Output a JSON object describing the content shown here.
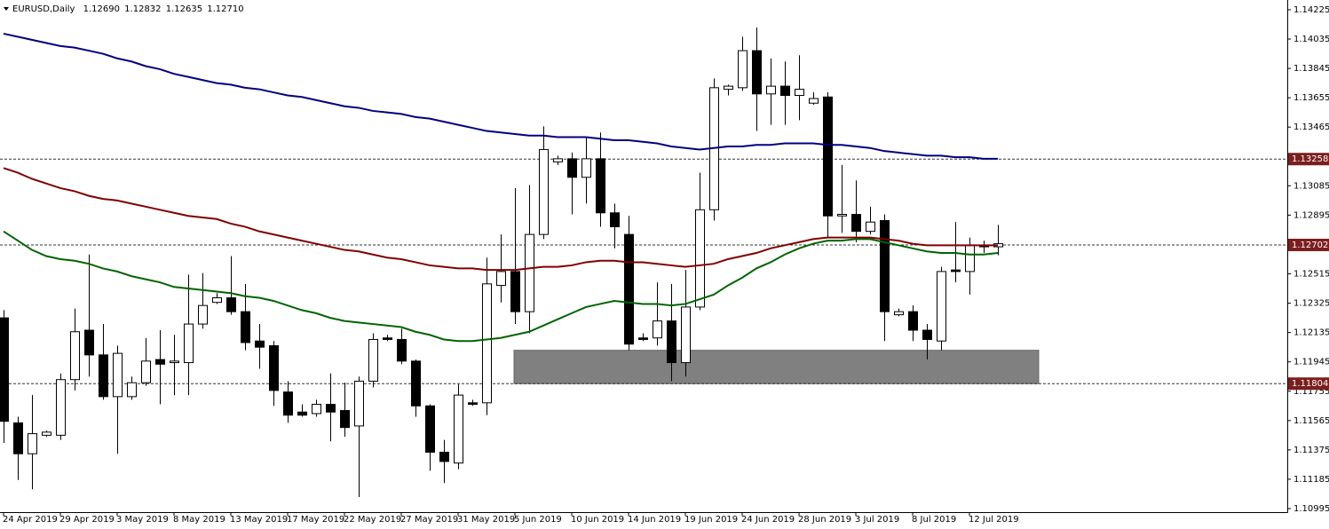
{
  "chart_data": {
    "type": "candlestick",
    "header": {
      "symbol": "EURUSD,Daily",
      "ohlc": [
        "1.12690",
        "1.12832",
        "1.12635",
        "1.12710"
      ]
    },
    "categories": [
      "24 Apr 2019",
      null,
      null,
      null,
      "29 Apr 2019",
      null,
      null,
      null,
      "3 May 2019",
      null,
      null,
      null,
      "8 May 2019",
      null,
      null,
      null,
      "13 May 2019",
      null,
      null,
      null,
      "17 May 2019",
      null,
      null,
      null,
      "22 May 2019",
      null,
      null,
      null,
      "27 May 2019",
      null,
      null,
      null,
      "31 May 2019",
      null,
      null,
      null,
      "5 Jun 2019",
      null,
      null,
      null,
      "10 Jun 2019",
      null,
      null,
      null,
      "14 Jun 2019",
      null,
      null,
      null,
      "19 Jun 2019",
      null,
      null,
      null,
      "24 Jun 2019",
      null,
      null,
      null,
      "28 Jun 2019",
      null,
      null,
      null,
      "3 Jul 2019",
      null,
      null,
      null,
      "8 Jul 2019",
      null,
      null,
      null,
      "12 Jul 2019",
      null,
      null
    ],
    "open": [
      1.1223,
      1.1155,
      1.1135,
      1.1147,
      1.1147,
      1.1183,
      1.1215,
      1.1199,
      1.1172,
      1.1172,
      1.1181,
      1.1196,
      1.1194,
      1.1194,
      1.1219,
      1.1233,
      1.1236,
      1.1227,
      1.1208,
      1.1205,
      1.1175,
      1.1162,
      1.1161,
      1.1167,
      1.1163,
      1.1153,
      1.1182,
      1.121,
      1.1209,
      1.1195,
      1.1166,
      1.1136,
      1.1129,
      1.1168,
      1.1168,
      1.1244,
      1.1253,
      1.1227,
      1.1277,
      1.1324,
      1.1326,
      1.1314,
      1.1326,
      1.1291,
      1.1277,
      1.121,
      1.121,
      1.1221,
      1.1194,
      1.123,
      1.1293,
      1.1371,
      1.1372,
      1.1396,
      1.1368,
      1.1373,
      1.1367,
      1.1362,
      1.1366,
      1.1289,
      1.129,
      1.1279,
      1.1286,
      1.1225,
      1.1227,
      1.1215,
      1.1208,
      1.1254,
      1.1253,
      1.127,
      1.1269
    ],
    "high": [
      1.1228,
      1.1159,
      1.1173,
      1.115,
      1.1187,
      1.1229,
      1.1264,
      1.1219,
      1.1205,
      1.1185,
      1.121,
      1.1215,
      1.1212,
      1.1251,
      1.1252,
      1.1239,
      1.1263,
      1.1245,
      1.1219,
      1.1208,
      1.1182,
      1.1167,
      1.117,
      1.1187,
      1.1181,
      1.1185,
      1.1213,
      1.1212,
      1.1216,
      1.1196,
      1.1167,
      1.1144,
      1.118,
      1.117,
      1.1262,
      1.1277,
      1.1307,
      1.1309,
      1.1347,
      1.1328,
      1.133,
      1.134,
      1.1343,
      1.1297,
      1.1289,
      1.1213,
      1.1246,
      1.1245,
      1.1254,
      1.1317,
      1.1378,
      1.1374,
      1.1405,
      1.1411,
      1.1391,
      1.1389,
      1.1393,
      1.1369,
      1.1369,
      1.1322,
      1.1312,
      1.1295,
      1.129,
      1.1229,
      1.1231,
      1.1219,
      1.1256,
      1.1285,
      1.1275,
      1.1273,
      1.12832
    ],
    "low": [
      1.1142,
      1.1118,
      1.1112,
      1.1146,
      1.1144,
      1.1176,
      1.1185,
      1.117,
      1.1135,
      1.117,
      1.1179,
      1.1167,
      1.1173,
      1.1173,
      1.1216,
      1.1232,
      1.1225,
      1.1202,
      1.119,
      1.1166,
      1.1155,
      1.1159,
      1.1159,
      1.1143,
      1.1146,
      1.1107,
      1.1178,
      1.1208,
      1.1193,
      1.1159,
      1.1124,
      1.1116,
      1.1125,
      1.1166,
      1.116,
      1.1233,
      1.1219,
      1.1213,
      1.1274,
      1.1322,
      1.129,
      1.1297,
      1.1282,
      1.1268,
      1.1202,
      1.1208,
      1.1205,
      1.1182,
      1.1185,
      1.1228,
      1.1286,
      1.1367,
      1.137,
      1.1344,
      1.1348,
      1.1348,
      1.1351,
      1.1361,
      1.1275,
      1.1278,
      1.1272,
      1.1277,
      1.1208,
      1.1224,
      1.1208,
      1.1196,
      1.1202,
      1.1246,
      1.1238,
      1.1265,
      1.12635
    ],
    "close": [
      1.1156,
      1.1135,
      1.1148,
      1.1149,
      1.1183,
      1.1214,
      1.1199,
      1.1172,
      1.12,
      1.1181,
      1.1195,
      1.1193,
      1.1195,
      1.1219,
      1.1231,
      1.1236,
      1.1227,
      1.1207,
      1.1204,
      1.1176,
      1.116,
      1.116,
      1.1167,
      1.1162,
      1.1152,
      1.1182,
      1.1209,
      1.1209,
      1.1195,
      1.1166,
      1.1136,
      1.113,
      1.1173,
      1.1167,
      1.1245,
      1.1253,
      1.1227,
      1.1277,
      1.1332,
      1.1326,
      1.1314,
      1.1326,
      1.1291,
      1.1282,
      1.1206,
      1.1209,
      1.1221,
      1.1194,
      1.123,
      1.1293,
      1.1372,
      1.1373,
      1.1396,
      1.1368,
      1.1373,
      1.1367,
      1.1371,
      1.1365,
      1.1289,
      1.129,
      1.1279,
      1.1285,
      1.1227,
      1.1227,
      1.1215,
      1.1209,
      1.1253,
      1.1253,
      1.127,
      1.1269,
      1.1271
    ],
    "up_color": "#ffffff",
    "down_color": "#000000",
    "lines": [
      {
        "color": "#000080",
        "values": [
          1.1407,
          1.1405,
          1.1403,
          1.1401,
          1.1399,
          1.1398,
          1.1396,
          1.1394,
          1.1391,
          1.1389,
          1.1386,
          1.1384,
          1.1381,
          1.1379,
          1.1377,
          1.1375,
          1.1374,
          1.1372,
          1.1371,
          1.1369,
          1.1367,
          1.1366,
          1.1364,
          1.1362,
          1.136,
          1.1359,
          1.1357,
          1.1356,
          1.1355,
          1.1353,
          1.1352,
          1.135,
          1.1348,
          1.1346,
          1.1344,
          1.1343,
          1.1342,
          1.1341,
          1.1341,
          1.134,
          1.134,
          1.134,
          1.1339,
          1.1338,
          1.1338,
          1.1337,
          1.1336,
          1.1334,
          1.1333,
          1.1332,
          1.1333,
          1.1334,
          1.1334,
          1.1335,
          1.1335,
          1.1336,
          1.1336,
          1.1336,
          1.1335,
          1.1335,
          1.1334,
          1.1333,
          1.1331,
          1.133,
          1.1329,
          1.1328,
          1.1328,
          1.1327,
          1.1327,
          1.1326,
          1.1326
        ]
      },
      {
        "color": "#800000",
        "values": [
          1.132,
          1.1317,
          1.1313,
          1.131,
          1.1307,
          1.1305,
          1.1302,
          1.13,
          1.1299,
          1.1297,
          1.1295,
          1.1293,
          1.1291,
          1.1289,
          1.1288,
          1.1287,
          1.1284,
          1.1282,
          1.1279,
          1.1277,
          1.1275,
          1.1273,
          1.1271,
          1.1269,
          1.1267,
          1.1266,
          1.1264,
          1.1262,
          1.1261,
          1.1259,
          1.1257,
          1.1256,
          1.1255,
          1.1255,
          1.1254,
          1.1254,
          1.1254,
          1.1255,
          1.1256,
          1.1256,
          1.1257,
          1.1259,
          1.126,
          1.126,
          1.1259,
          1.1259,
          1.1258,
          1.1257,
          1.1256,
          1.1257,
          1.1258,
          1.1261,
          1.1263,
          1.1265,
          1.1268,
          1.127,
          1.1272,
          1.1274,
          1.1275,
          1.1275,
          1.1275,
          1.1275,
          1.1274,
          1.1273,
          1.1271,
          1.127,
          1.127,
          1.127,
          1.127,
          1.127,
          1.127
        ]
      },
      {
        "color": "#006400",
        "values": [
          1.1279,
          1.1273,
          1.1267,
          1.1263,
          1.1261,
          1.126,
          1.1258,
          1.1255,
          1.1253,
          1.125,
          1.1248,
          1.1246,
          1.1243,
          1.1242,
          1.1241,
          1.124,
          1.1239,
          1.1237,
          1.1236,
          1.1234,
          1.1231,
          1.1228,
          1.1226,
          1.1223,
          1.1221,
          1.122,
          1.1219,
          1.1218,
          1.1217,
          1.1214,
          1.1212,
          1.1209,
          1.1208,
          1.1208,
          1.1209,
          1.121,
          1.1212,
          1.1214,
          1.1218,
          1.1222,
          1.1226,
          1.123,
          1.1232,
          1.1234,
          1.1233,
          1.1232,
          1.1232,
          1.1231,
          1.1232,
          1.1235,
          1.1238,
          1.1244,
          1.1249,
          1.1255,
          1.1259,
          1.1264,
          1.1268,
          1.1271,
          1.1273,
          1.1273,
          1.1274,
          1.1274,
          1.1272,
          1.127,
          1.1268,
          1.1266,
          1.1265,
          1.1265,
          1.1264,
          1.1264,
          1.1265
        ]
      }
    ],
    "hlines": [
      1.13258,
      1.12702,
      1.11804
    ],
    "zone": {
      "low": 1.11804,
      "high": 1.1202
    },
    "ylim": [
      1.10972,
      1.14288
    ],
    "yticks": [
      1.14225,
      1.14035,
      1.13845,
      1.13655,
      1.13465,
      1.13085,
      1.12895,
      1.12515,
      1.12325,
      1.12135,
      1.11945,
      1.11755,
      1.11565,
      1.11375,
      1.11185,
      1.10995
    ]
  }
}
